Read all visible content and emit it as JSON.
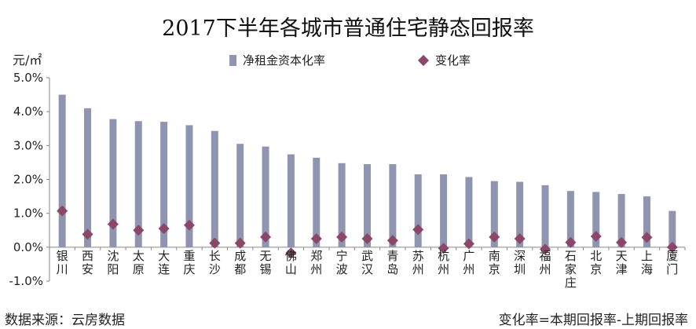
{
  "chart_data": {
    "type": "bar",
    "title": "2017下半年各城市普通住宅静态回报率",
    "unit_label": "元/㎡",
    "categories": [
      "银川",
      "西安",
      "沈阳",
      "太原",
      "大连",
      "重庆",
      "长沙",
      "成都",
      "无锡",
      "佛山",
      "郑州",
      "宁波",
      "武汉",
      "青岛",
      "苏州",
      "杭州",
      "广州",
      "南京",
      "深圳",
      "福州",
      "石家庄",
      "北京",
      "天津",
      "上海",
      "厦门"
    ],
    "series": [
      {
        "name": "净租金资本化率",
        "kind": "bar",
        "color": "#8f95b0",
        "values": [
          4.5,
          4.1,
          3.78,
          3.72,
          3.7,
          3.6,
          3.43,
          3.05,
          2.97,
          2.74,
          2.64,
          2.48,
          2.45,
          2.45,
          2.15,
          2.15,
          2.07,
          1.95,
          1.93,
          1.83,
          1.66,
          1.63,
          1.57,
          1.5,
          1.07
        ]
      },
      {
        "name": "变化率",
        "kind": "marker",
        "color": "#8b4668",
        "values": [
          1.07,
          0.38,
          0.68,
          0.5,
          0.55,
          0.65,
          0.12,
          0.12,
          0.3,
          -0.17,
          0.25,
          0.3,
          0.25,
          0.2,
          0.52,
          -0.03,
          0.1,
          0.3,
          0.25,
          -0.06,
          0.14,
          0.32,
          0.14,
          0.29,
          0.0
        ]
      }
    ],
    "ylim": [
      -1.0,
      5.0
    ],
    "y_ticks": [
      "-1.0%",
      "0.0%",
      "1.0%",
      "2.0%",
      "3.0%",
      "4.0%",
      "5.0%"
    ],
    "y_tick_values": [
      -1,
      0,
      1,
      2,
      3,
      4,
      5
    ],
    "grid": false,
    "legend_position": "top"
  },
  "footer": {
    "source": "数据来源：云房数据",
    "note": "变化率=本期回报率-上期回报率"
  }
}
